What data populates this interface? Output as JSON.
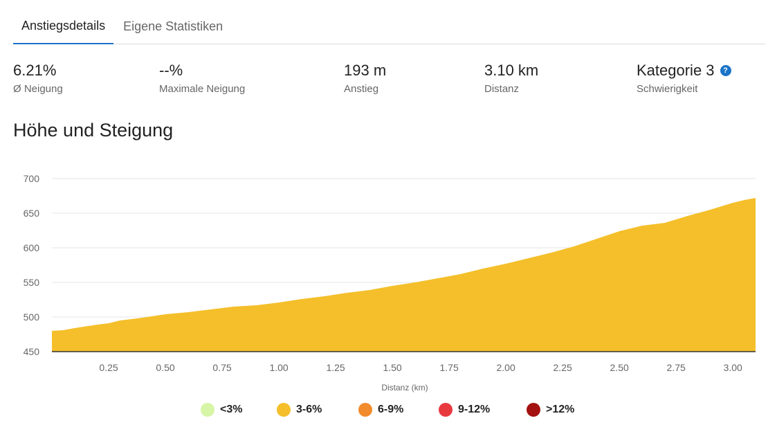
{
  "tabs": [
    {
      "label": "Anstiegsdetails",
      "active": true
    },
    {
      "label": "Eigene Statistiken",
      "active": false
    }
  ],
  "stats": [
    {
      "value": "6.21%",
      "label": "Ø Neigung"
    },
    {
      "value": "--%",
      "label": "Maximale Neigung"
    },
    {
      "value": "193 m",
      "label": "Anstieg"
    },
    {
      "value": "3.10 km",
      "label": "Distanz"
    },
    {
      "value": "Kategorie 3",
      "label": "Schwierigkeit",
      "help_icon": "?"
    }
  ],
  "section_title": "Höhe und Steigung",
  "chart_data": {
    "type": "area",
    "xlabel": "Distanz (km)",
    "ylabel": "",
    "xlim": [
      0,
      3.1
    ],
    "ylim": [
      450,
      700
    ],
    "x_ticks": [
      "0.25",
      "0.50",
      "0.75",
      "1.00",
      "1.25",
      "1.50",
      "1.75",
      "2.00",
      "2.25",
      "2.50",
      "2.75",
      "3.00"
    ],
    "y_ticks": [
      "450",
      "500",
      "550",
      "600",
      "650",
      "700"
    ],
    "grid": true,
    "series": [
      {
        "color": "#f4bf2a",
        "x": [
          0,
          0.05,
          0.1,
          0.2,
          0.25,
          0.3,
          0.4,
          0.5,
          0.6,
          0.7,
          0.8,
          0.9,
          1.0,
          1.1,
          1.2,
          1.3,
          1.4,
          1.5,
          1.6,
          1.7,
          1.8,
          1.9,
          2.0,
          2.1,
          2.2,
          2.3,
          2.4,
          2.5,
          2.6,
          2.7,
          2.8,
          2.9,
          3.0,
          3.05,
          3.1
        ],
        "y": [
          480,
          481,
          484,
          489,
          491,
          495,
          499,
          504,
          507,
          511,
          515,
          517,
          521,
          526,
          530,
          535,
          539,
          545,
          550,
          556,
          562,
          570,
          577,
          585,
          593,
          602,
          613,
          624,
          632,
          636,
          646,
          655,
          665,
          669,
          672
        ]
      }
    ]
  },
  "legend": [
    {
      "label": "<3%",
      "color": "#d6f5a6"
    },
    {
      "label": "3-6%",
      "color": "#f4bf2a"
    },
    {
      "label": "6-9%",
      "color": "#f28b2c"
    },
    {
      "label": "9-12%",
      "color": "#e8393f"
    },
    {
      "label": ">12%",
      "color": "#a31111"
    }
  ]
}
